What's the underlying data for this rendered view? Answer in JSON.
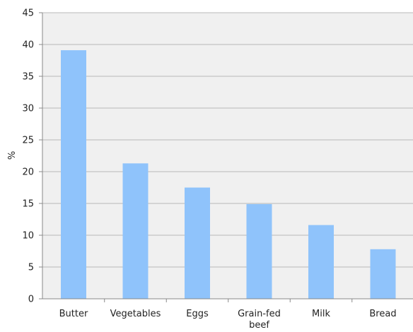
{
  "chart_data": {
    "type": "bar",
    "title": "",
    "xlabel": "",
    "ylabel": "%",
    "ylim": [
      0,
      45
    ],
    "yticks": [
      0,
      5,
      10,
      15,
      20,
      25,
      30,
      35,
      40,
      45
    ],
    "grid": true,
    "legend": "none",
    "categories": [
      "Butter",
      "Vegetables",
      "Eggs",
      "Grain-fed beef",
      "Milk",
      "Bread"
    ],
    "category_lines": [
      [
        "Butter"
      ],
      [
        "Vegetables"
      ],
      [
        "Eggs"
      ],
      [
        "Grain-fed",
        "beef"
      ],
      [
        "Milk"
      ],
      [
        "Bread"
      ]
    ],
    "values": [
      39.1,
      21.3,
      17.5,
      14.9,
      11.6,
      7.8
    ],
    "colors": {
      "bar": "#8fc3fb",
      "plot_background": "#f0f0f0",
      "gridline": "#b8b8b8",
      "axis": "#888888"
    }
  }
}
